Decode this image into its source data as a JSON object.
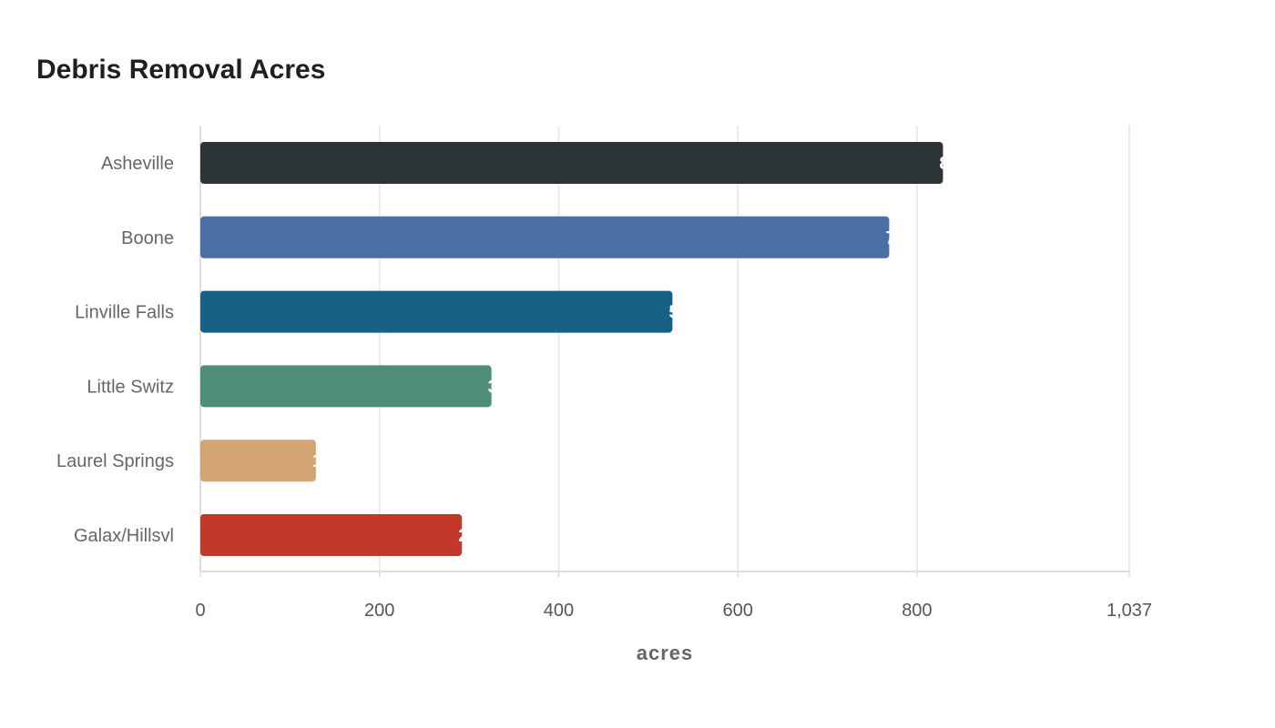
{
  "chart_data": {
    "type": "bar",
    "orientation": "horizontal",
    "title": "Debris Removal Acres",
    "xlabel": "acres",
    "ylabel": "",
    "categories": [
      "Asheville",
      "Boone",
      "Linville Falls",
      "Little Switz",
      "Laurel Springs",
      "Galax/Hillsvl"
    ],
    "values": [
      829,
      769,
      527,
      325,
      129,
      292
    ],
    "colors": [
      "#2d3436",
      "#4a6fa5",
      "#186186",
      "#4f8e7b",
      "#d4a574",
      "#c0392b"
    ],
    "xlim": [
      0,
      1037
    ],
    "xticks": [
      0,
      200,
      400,
      600,
      800,
      1037
    ],
    "xtick_labels": [
      "0",
      "200",
      "400",
      "600",
      "800",
      "1,037"
    ],
    "grid": true,
    "data_label_color": "#ffffff"
  }
}
